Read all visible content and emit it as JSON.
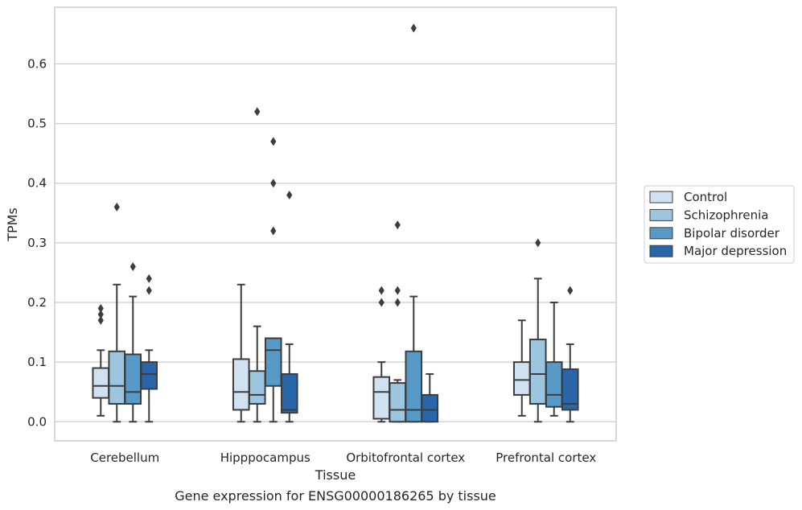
{
  "chart_data": {
    "type": "box",
    "title": "",
    "caption": "Gene expression for ENSG00000186265 by tissue",
    "xlabel": "Tissue",
    "ylabel": "TPMs",
    "ylim": [
      -0.032,
      0.695
    ],
    "yticks": [
      0.0,
      0.1,
      0.2,
      0.3,
      0.4,
      0.5,
      0.6
    ],
    "ytick_labels": [
      "0.0",
      "0.1",
      "0.2",
      "0.3",
      "0.4",
      "0.5",
      "0.6"
    ],
    "grid": "horizontal",
    "legend_position": "right",
    "categories": [
      "Cerebellum",
      "Hipppocampus",
      "Orbitofrontal cortex",
      "Prefrontal cortex"
    ],
    "series": [
      {
        "name": "Control",
        "color": "#d0e1f1",
        "boxes": [
          {
            "whisker_low": 0.01,
            "q1": 0.04,
            "median": 0.06,
            "q3": 0.09,
            "whisker_high": 0.12,
            "outliers": [
              0.17,
              0.18,
              0.19
            ]
          },
          {
            "whisker_low": 0.0,
            "q1": 0.02,
            "median": 0.05,
            "q3": 0.105,
            "whisker_high": 0.23,
            "outliers": []
          },
          {
            "whisker_low": 0.0,
            "q1": 0.005,
            "median": 0.05,
            "q3": 0.075,
            "whisker_high": 0.1,
            "outliers": [
              0.2,
              0.22
            ]
          },
          {
            "whisker_low": 0.01,
            "q1": 0.045,
            "median": 0.07,
            "q3": 0.1,
            "whisker_high": 0.17,
            "outliers": []
          }
        ]
      },
      {
        "name": "Schizophrenia",
        "color": "#9cc5e0",
        "boxes": [
          {
            "whisker_low": 0.0,
            "q1": 0.03,
            "median": 0.06,
            "q3": 0.118,
            "whisker_high": 0.23,
            "outliers": [
              0.36
            ]
          },
          {
            "whisker_low": 0.0,
            "q1": 0.03,
            "median": 0.045,
            "q3": 0.085,
            "whisker_high": 0.16,
            "outliers": [
              0.52
            ]
          },
          {
            "whisker_low": 0.0,
            "q1": 0.0,
            "median": 0.02,
            "q3": 0.065,
            "whisker_high": 0.07,
            "outliers": [
              0.2,
              0.22,
              0.33
            ]
          },
          {
            "whisker_low": 0.0,
            "q1": 0.03,
            "median": 0.08,
            "q3": 0.138,
            "whisker_high": 0.24,
            "outliers": [
              0.3
            ]
          }
        ]
      },
      {
        "name": "Bipolar disorder",
        "color": "#5799c7",
        "boxes": [
          {
            "whisker_low": 0.0,
            "q1": 0.03,
            "median": 0.05,
            "q3": 0.113,
            "whisker_high": 0.21,
            "outliers": [
              0.26
            ]
          },
          {
            "whisker_low": 0.0,
            "q1": 0.06,
            "median": 0.12,
            "q3": 0.14,
            "whisker_high": 0.14,
            "outliers": [
              0.32,
              0.4,
              0.47
            ]
          },
          {
            "whisker_low": 0.0,
            "q1": 0.0,
            "median": 0.02,
            "q3": 0.118,
            "whisker_high": 0.21,
            "outliers": [
              0.66
            ]
          },
          {
            "whisker_low": 0.01,
            "q1": 0.025,
            "median": 0.045,
            "q3": 0.1,
            "whisker_high": 0.2,
            "outliers": []
          }
        ]
      },
      {
        "name": "Major depression",
        "color": "#2866a9",
        "boxes": [
          {
            "whisker_low": 0.0,
            "q1": 0.055,
            "median": 0.08,
            "q3": 0.1,
            "whisker_high": 0.12,
            "outliers": [
              0.22,
              0.24
            ]
          },
          {
            "whisker_low": 0.0,
            "q1": 0.015,
            "median": 0.02,
            "q3": 0.08,
            "whisker_high": 0.13,
            "outliers": [
              0.38
            ]
          },
          {
            "whisker_low": 0.0,
            "q1": 0.0,
            "median": 0.02,
            "q3": 0.045,
            "whisker_high": 0.08,
            "outliers": []
          },
          {
            "whisker_low": 0.0,
            "q1": 0.02,
            "median": 0.03,
            "q3": 0.088,
            "whisker_high": 0.13,
            "outliers": [
              0.22
            ]
          }
        ]
      }
    ]
  }
}
